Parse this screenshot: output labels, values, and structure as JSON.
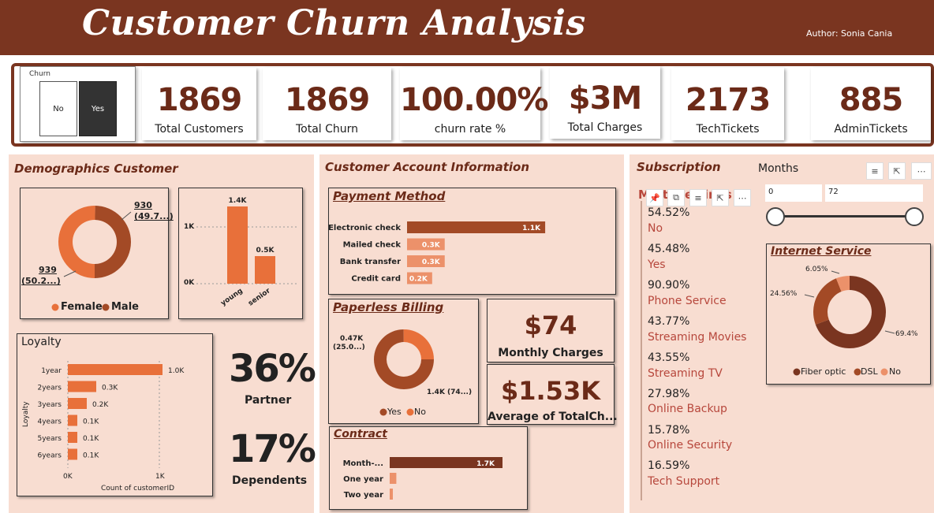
{
  "header": {
    "title": "Customer Churn Analysis",
    "author": "Author: Sonia Cania"
  },
  "slicer": {
    "title": "Churn",
    "options": [
      "No",
      "Yes"
    ],
    "selected": "Yes"
  },
  "kpis": [
    {
      "value": "1869",
      "label": "Total Customers"
    },
    {
      "value": "1869",
      "label": "Total Churn"
    },
    {
      "value": "100.00%",
      "label": "churn rate %"
    },
    {
      "value": "$3M",
      "label": "Total Charges"
    },
    {
      "value": "2173",
      "label": "TechTickets"
    },
    {
      "value": "885",
      "label": "AdminTickets"
    }
  ],
  "demographics": {
    "title": "Demographics Customer",
    "gender_legend": [
      "Female",
      "Male"
    ],
    "male_label": "930",
    "male_pct": "(49.7...)",
    "female_label": "939",
    "female_pct": "(50.2...)",
    "age_ticks": [
      "1K",
      "0K"
    ],
    "loyalty_title": "Loyalty",
    "loyalty_axis_y": "Loyalty",
    "loyalty_axis_x": "Count of customerID",
    "loyalty_x_ticks": [
      "0K",
      "1K"
    ],
    "partner_value": "36%",
    "partner_label": "Partner",
    "dependents_value": "17%",
    "dependents_label": "Dependents"
  },
  "account": {
    "title": "Customer Account Information",
    "payment_title": "Payment Method",
    "paperless_title": "Paperless Billing",
    "paperless_legend": [
      "Yes",
      "No"
    ],
    "paperless_yes": "1.4K (74...)",
    "paperless_no_1": "0.47K",
    "paperless_no_2": "(25.0...)",
    "monthly_value": "$74",
    "monthly_label": "Monthly Charges",
    "avg_value": "$1.53K",
    "avg_label": "Average of TotalCh...",
    "contract_title": "Contract"
  },
  "subscription": {
    "title": "Subscription",
    "months_label": "Months",
    "months_min": "0",
    "months_max": "72",
    "hidden_title": "Multiple Lines",
    "items": [
      {
        "pct": "54.52%",
        "name": "No"
      },
      {
        "pct": "45.48%",
        "name": "Yes"
      },
      {
        "pct": "90.90%",
        "name": "Phone Service"
      },
      {
        "pct": "43.77%",
        "name": "Streaming Movies"
      },
      {
        "pct": "43.55%",
        "name": "Streaming TV"
      },
      {
        "pct": "27.98%",
        "name": "Online Backup"
      },
      {
        "pct": "15.78%",
        "name": "Online Security"
      },
      {
        "pct": "16.59%",
        "name": "Tech Support"
      }
    ],
    "internet_title": "Internet Service",
    "internet_legend": [
      "Fiber optic",
      "DSL",
      "No"
    ],
    "internet_fiber": "69.4%",
    "internet_dsl": "24.56%",
    "internet_no": "6.05%"
  },
  "colors": {
    "dark_brown": "#7a3520",
    "mid_brown": "#a34a26",
    "orange": "#e8703a",
    "light_orange": "#ec916a",
    "panel_bg": "#f8ddd1",
    "sub_text": "#b7473c"
  },
  "chart_data": [
    {
      "type": "pie",
      "title": "",
      "categories": [
        "Female",
        "Male"
      ],
      "values": [
        939,
        930
      ]
    },
    {
      "type": "bar",
      "title": "",
      "categories": [
        "young",
        "senior"
      ],
      "values": [
        1.4,
        0.5
      ],
      "value_labels": [
        "1.4K",
        "0.5K"
      ],
      "ylim": [
        0,
        1.5
      ]
    },
    {
      "type": "bar",
      "title": "",
      "orientation": "horizontal",
      "xlabel": "Count of customerID",
      "ylabel": "Loyalty",
      "categories": [
        "1year",
        "2years",
        "3years",
        "4years",
        "5years",
        "6years"
      ],
      "values": [
        1.0,
        0.3,
        0.2,
        0.1,
        0.1,
        0.1
      ],
      "value_labels": [
        "1.0K",
        "0.3K",
        "0.2K",
        "0.1K",
        "0.1K",
        "0.1K"
      ],
      "xlim": [
        0,
        1
      ]
    },
    {
      "type": "bar",
      "title": "",
      "orientation": "horizontal",
      "categories": [
        "Electronic check",
        "Mailed check",
        "Bank transfer",
        "Credit card"
      ],
      "values": [
        1.1,
        0.3,
        0.3,
        0.2
      ],
      "value_labels": [
        "1.1K",
        "0.3K",
        "0.3K",
        "0.2K"
      ]
    },
    {
      "type": "pie",
      "title": "",
      "categories": [
        "Yes",
        "No"
      ],
      "values": [
        1.4,
        0.47
      ]
    },
    {
      "type": "bar",
      "title": "",
      "orientation": "horizontal",
      "categories": [
        "Month-...",
        "One year",
        "Two year"
      ],
      "values": [
        1.7,
        0.1,
        0.03
      ],
      "value_labels": [
        "1.7K",
        "",
        ""
      ]
    },
    {
      "type": "pie",
      "title": "",
      "categories": [
        "Fiber optic",
        "DSL",
        "No"
      ],
      "values": [
        69.4,
        24.56,
        6.05
      ]
    }
  ]
}
